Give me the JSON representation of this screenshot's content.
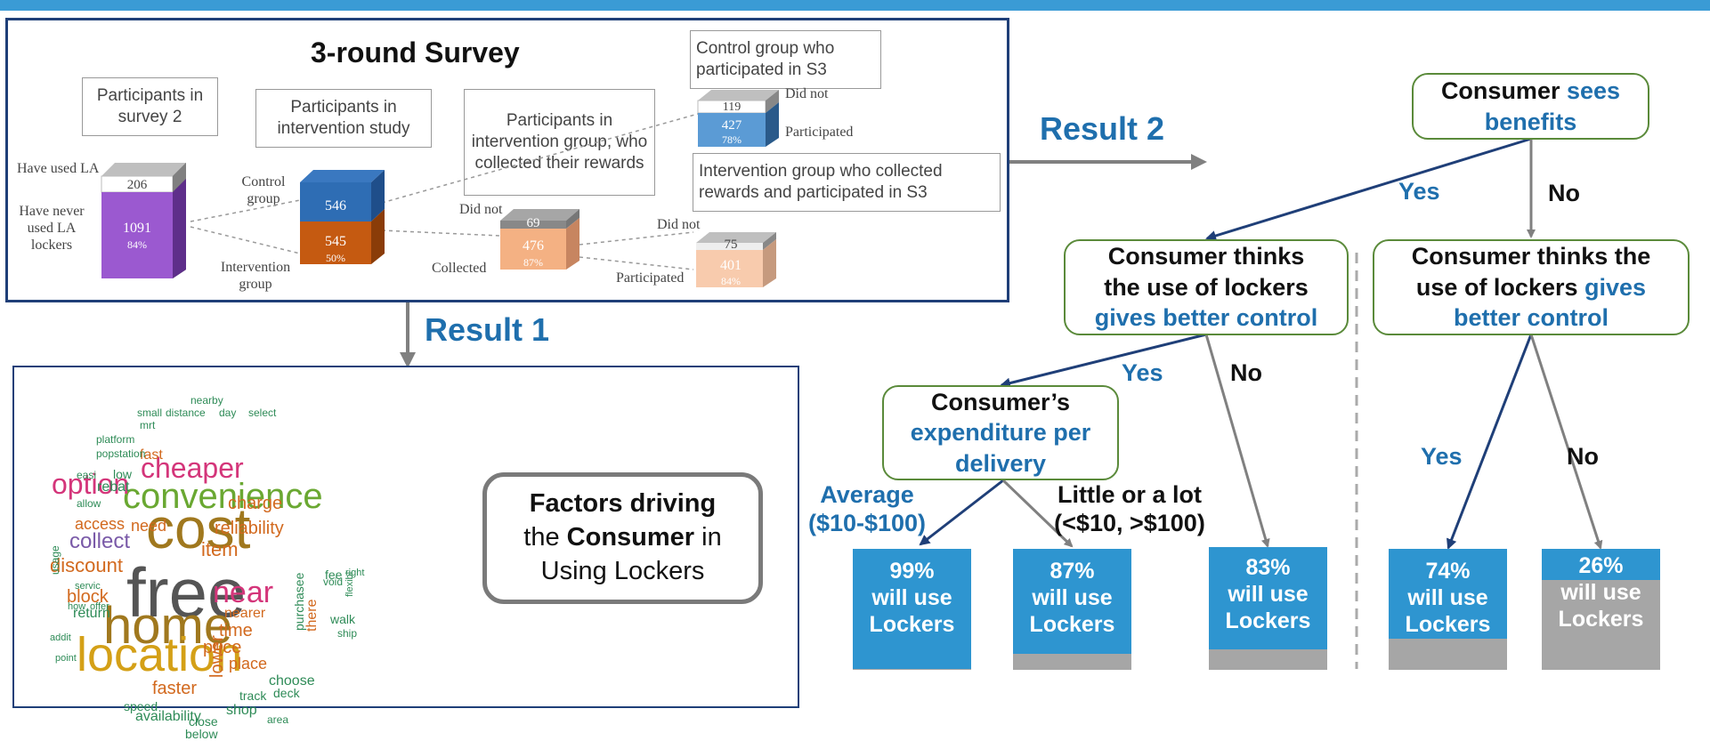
{
  "colors": {
    "top_bar": "#3a9bd5",
    "panel_border": "#1f3f78",
    "result_blue": "#1f6fad",
    "node_border": "#5a8a3a",
    "bar_blue": "#2e95d0",
    "bar_grey": "#a6a6a6",
    "arrow_dark": "#1f3f78",
    "arrow_grey": "#808080"
  },
  "survey": {
    "title": "3-round Survey",
    "boxes": {
      "participants_s2": "Participants in survey 2",
      "intervention_study": "Participants in intervention study",
      "intervention_collected": "Participants in intervention group, who collected their rewards",
      "control_s3": "Control group who participated in S3",
      "intervention_s3": "Intervention group who collected rewards and participated in S3"
    },
    "labels": {
      "have_used": "Have used LA",
      "have_never": "Have never used LA lockers",
      "control_group": "Control group",
      "intervention_group": "Intervention group",
      "did_not_1": "Did not",
      "collected": "Collected",
      "did_not_2": "Did not",
      "participated_1": "Participated",
      "did_not_3": "Did not",
      "participated_2": "Participated"
    },
    "cubes": {
      "c1_top": "206",
      "c1_bottom": "1091",
      "c1_pct": "84%",
      "c2_top": "546",
      "c2_bottom": "545",
      "c2_pct": "50%",
      "c3_top": "69",
      "c3_bottom": "476",
      "c3_pct": "87%",
      "c4_top": "75",
      "c4_bottom": "401",
      "c4_pct": "84%",
      "c5_top": "119",
      "c5_bottom": "427",
      "c5_pct": "78%"
    }
  },
  "results": {
    "result1": "Result 1",
    "result2": "Result 2"
  },
  "factors": {
    "line1": "Factors driving",
    "line2_pre": "the ",
    "line2_bold": "Consumer",
    "line2_post": " in",
    "line3": "Using Lockers"
  },
  "wordcloud": [
    {
      "t": "free",
      "c": "#555555"
    },
    {
      "t": "cost",
      "c": "#a0781e"
    },
    {
      "t": "home",
      "c": "#a0781e"
    },
    {
      "t": "location",
      "c": "#d4a017"
    },
    {
      "t": "convenience",
      "c": "#6aa832"
    },
    {
      "t": "cheaper",
      "c": "#d4357a"
    },
    {
      "t": "option",
      "c": "#d4357a"
    },
    {
      "t": "near",
      "c": "#d4357a"
    },
    {
      "t": "collect",
      "c": "#7a5aa8"
    },
    {
      "t": "discount",
      "c": "#d2691e"
    },
    {
      "t": "charge",
      "c": "#d2691e"
    },
    {
      "t": "reliability",
      "c": "#d2691e"
    },
    {
      "t": "item",
      "c": "#d2691e"
    },
    {
      "t": "price",
      "c": "#d2691e"
    },
    {
      "t": "time",
      "c": "#d2691e"
    },
    {
      "t": "faster",
      "c": "#d2691e"
    },
    {
      "t": "lower",
      "c": "#d2691e"
    },
    {
      "t": "block",
      "c": "#d2691e"
    },
    {
      "t": "access",
      "c": "#d2691e"
    },
    {
      "t": "need",
      "c": "#d2691e"
    },
    {
      "t": "place",
      "c": "#d2691e"
    },
    {
      "t": "nearer",
      "c": "#d2691e"
    },
    {
      "t": "fast",
      "c": "#d2691e"
    },
    {
      "t": "rebat",
      "c": "#2e8b57"
    },
    {
      "t": "low",
      "c": "#2e8b57"
    },
    {
      "t": "return",
      "c": "#2e8b57"
    },
    {
      "t": "shop",
      "c": "#2e8b57"
    },
    {
      "t": "track",
      "c": "#2e8b57"
    },
    {
      "t": "choose",
      "c": "#2e8b57"
    },
    {
      "t": "deck",
      "c": "#2e8b57"
    },
    {
      "t": "purchasee",
      "c": "#2e8b57"
    },
    {
      "t": "there",
      "c": "#d2691e"
    },
    {
      "t": "walk",
      "c": "#2e8b57"
    },
    {
      "t": "ship",
      "c": "#2e8b57"
    },
    {
      "t": "fee",
      "c": "#2e8b57"
    },
    {
      "t": "void",
      "c": "#2e8b57"
    },
    {
      "t": "right",
      "c": "#2e8b57"
    },
    {
      "t": "flexibl",
      "c": "#2e8b57"
    },
    {
      "t": "availability",
      "c": "#2e8b57"
    },
    {
      "t": "speed",
      "c": "#2e8b57"
    },
    {
      "t": "close",
      "c": "#2e8b57"
    },
    {
      "t": "below",
      "c": "#2e8b57"
    },
    {
      "t": "area",
      "c": "#2e8b57"
    },
    {
      "t": "small",
      "c": "#2e8b57"
    },
    {
      "t": "distance",
      "c": "#2e8b57"
    },
    {
      "t": "nearby",
      "c": "#2e8b57"
    },
    {
      "t": "day",
      "c": "#2e8b57"
    },
    {
      "t": "select",
      "c": "#2e8b57"
    },
    {
      "t": "mrt",
      "c": "#2e8b57"
    },
    {
      "t": "platform",
      "c": "#2e8b57"
    },
    {
      "t": "popstation",
      "c": "#2e8b57"
    },
    {
      "t": "easi",
      "c": "#2e8b57"
    },
    {
      "t": "allow",
      "c": "#2e8b57"
    },
    {
      "t": "usage",
      "c": "#2e8b57"
    },
    {
      "t": "servic",
      "c": "#2e8b57"
    },
    {
      "t": "how",
      "c": "#2e8b57"
    },
    {
      "t": "offer",
      "c": "#2e8b57"
    },
    {
      "t": "addit",
      "c": "#2e8b57"
    },
    {
      "t": "point",
      "c": "#2e8b57"
    }
  ],
  "tree": {
    "root": {
      "pre": "Consumer ",
      "blue": "sees benefits"
    },
    "benefits_yes": "Yes",
    "benefits_no": "No",
    "left_control": {
      "l1": "Consumer thinks",
      "l2": "the use of lockers",
      "blue": "gives better control"
    },
    "right_control": {
      "l1": "Consumer thinks the",
      "l2_pre": "use of lockers ",
      "l2_blue": "gives",
      "blue": "better control"
    },
    "control_yes": "Yes",
    "control_no": "No",
    "right_yes": "Yes",
    "right_no": "No",
    "expenditure": {
      "l1": "Consumer’s",
      "blue1": "expenditure per",
      "blue2": "delivery"
    },
    "average": {
      "l1": "Average",
      "l2": "($10-$100)"
    },
    "little": {
      "l1": "Little or a lot",
      "l2": "(<$10, >$100)"
    },
    "bars": [
      {
        "pct": "99%",
        "fraction": 0.99,
        "l1": "will use",
        "l2": "Lockers"
      },
      {
        "pct": "87%",
        "fraction": 0.87,
        "l1": "will use",
        "l2": "Lockers"
      },
      {
        "pct": "83%",
        "fraction": 0.83,
        "l1": "will use",
        "l2": "Lockers"
      },
      {
        "pct": "74%",
        "fraction": 0.74,
        "l1": "will use",
        "l2": "Lockers"
      },
      {
        "pct": "26%",
        "fraction": 0.26,
        "l1": "will use",
        "l2": "Lockers"
      }
    ]
  }
}
